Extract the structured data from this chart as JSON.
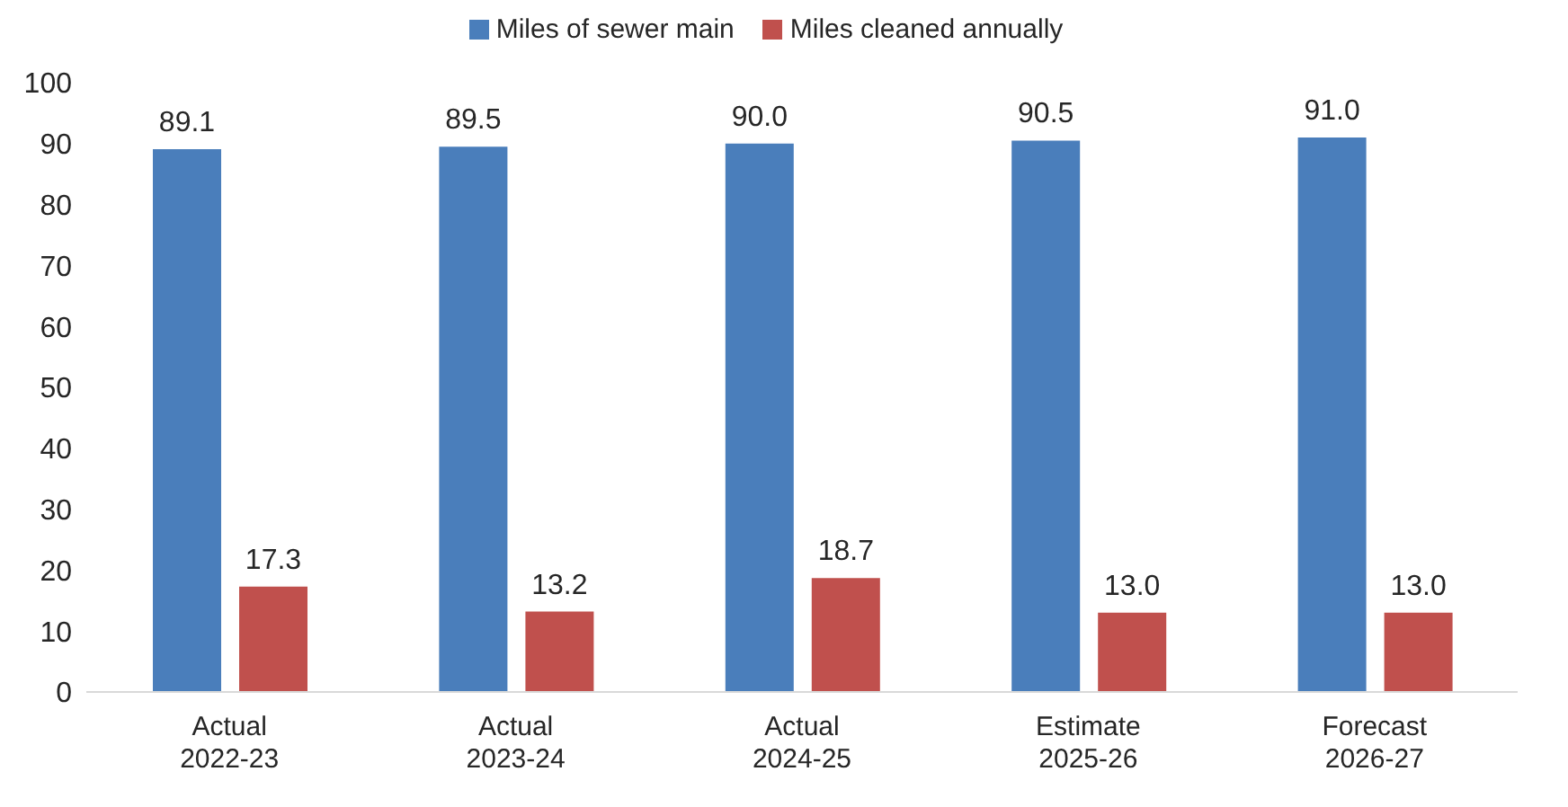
{
  "chart_data": {
    "type": "bar",
    "categories": [
      "Actual\n2022-23",
      "Actual\n2023-24",
      "Actual\n2024-25",
      "Estimate\n2025-26",
      "Forecast\n2026-27"
    ],
    "series": [
      {
        "name": "Miles of sewer main",
        "color": "#4a7ebb",
        "values": [
          89.1,
          89.5,
          90.0,
          90.5,
          91.0
        ],
        "value_labels": [
          "89.1",
          "89.5",
          "90.0",
          "90.5",
          "91.0"
        ]
      },
      {
        "name": "Miles cleaned annually",
        "color": "#c0504d",
        "values": [
          17.3,
          13.2,
          18.7,
          13.0,
          13.0
        ],
        "value_labels": [
          "17.3",
          "13.2",
          "18.7",
          "13.0",
          "13.0"
        ]
      }
    ],
    "ylim": [
      0,
      100
    ],
    "yticks": [
      0,
      10,
      20,
      30,
      40,
      50,
      60,
      70,
      80,
      90,
      100
    ],
    "legend": "top"
  }
}
